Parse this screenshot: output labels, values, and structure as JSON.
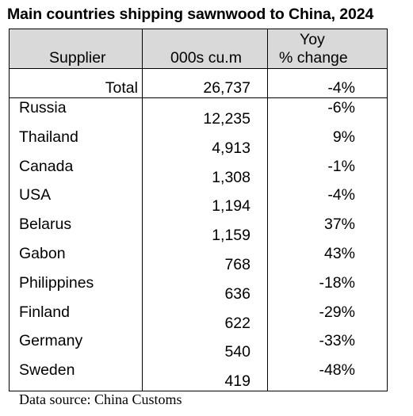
{
  "title": "Main countries shipping sawnwood to China, 2024",
  "header": {
    "supplier": "Supplier",
    "volume": "000s cu.m",
    "yoy_line1": "Yoy",
    "yoy_line2": "% change"
  },
  "total": {
    "label": "Total",
    "volume": "26,737",
    "yoy": "-4%"
  },
  "rows": [
    {
      "supplier": "Russia",
      "volume": "12,235",
      "yoy": "-6%"
    },
    {
      "supplier": "Thailand",
      "volume": "4,913",
      "yoy": "9%"
    },
    {
      "supplier": "Canada",
      "volume": "1,308",
      "yoy": "-1%"
    },
    {
      "supplier": "USA",
      "volume": "1,194",
      "yoy": "-4%"
    },
    {
      "supplier": "Belarus",
      "volume": "1,159",
      "yoy": "37%"
    },
    {
      "supplier": "Gabon",
      "volume": "768",
      "yoy": "43%"
    },
    {
      "supplier": "Philippines",
      "volume": "636",
      "yoy": "-18%"
    },
    {
      "supplier": "Finland",
      "volume": "622",
      "yoy": "-29%"
    },
    {
      "supplier": "Germany",
      "volume": "540",
      "yoy": "-33%"
    },
    {
      "supplier": "Sweden",
      "volume": "419",
      "yoy": "-48%"
    }
  ],
  "source": "Data source: China Customs",
  "colors": {
    "header_bg": "#d9d9d9",
    "border": "#000000"
  }
}
